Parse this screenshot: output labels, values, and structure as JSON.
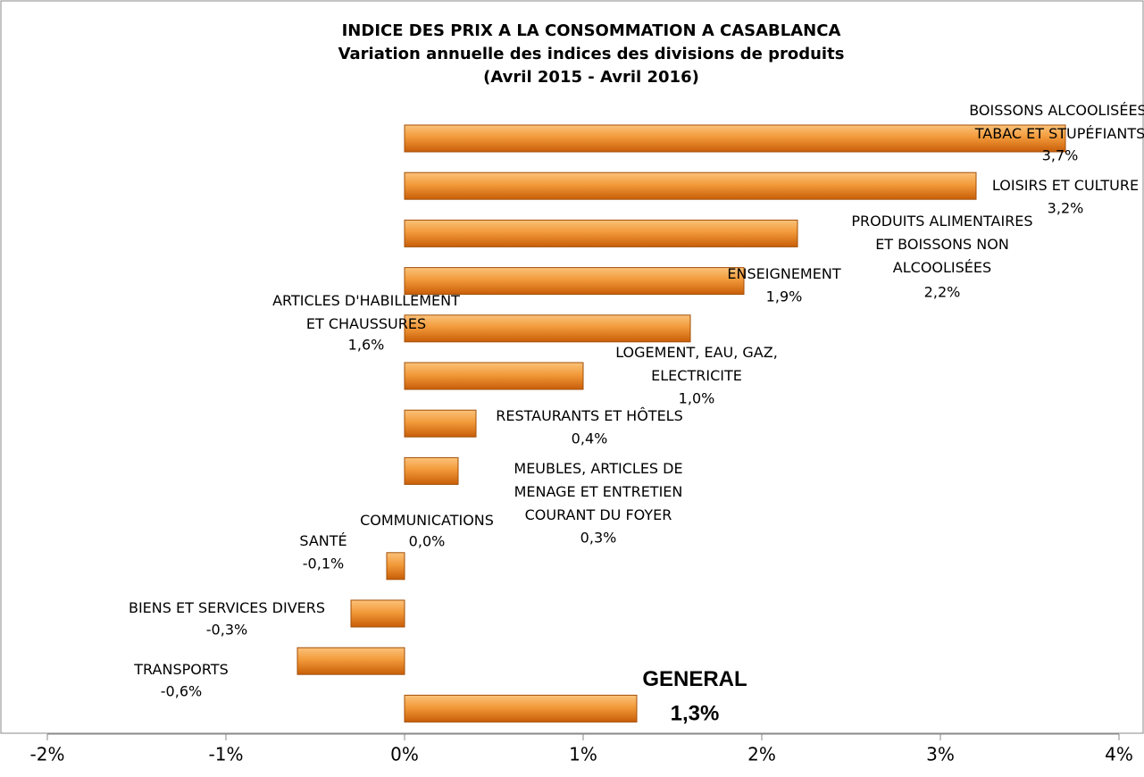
{
  "chart_data": {
    "type": "bar",
    "orientation": "horizontal",
    "title": "INDICE DES PRIX A LA CONSOMMATION A CASABLANCA",
    "subtitle": [
      "Variation annuelle des indices des divisions de produits",
      "(Avril 2015 - Avril 2016)"
    ],
    "categories": [
      "BOISSONS ALCOOLISÉES,\nTABAC ET STUPÉFIANTS",
      "LOISIRS ET CULTURE",
      "PRODUITS ALIMENTAIRES\nET BOISSONS NON\nALCOOLISÉES",
      "ENSEIGNEMENT",
      "ARTICLES D'HABILLEMENT\nET CHAUSSURES",
      "LOGEMENT, EAU, GAZ,\nELECTRICITE",
      "RESTAURANTS ET HÔTELS",
      "MEUBLES, ARTICLES DE\nMENAGE ET ENTRETIEN\nCOURANT DU FOYER",
      "COMMUNICATIONS",
      "SANTÉ",
      "BIENS ET SERVICES DIVERS",
      "TRANSPORTS",
      "GENERAL"
    ],
    "values": [
      3.7,
      3.2,
      2.2,
      1.9,
      1.6,
      1.0,
      0.4,
      0.3,
      0.0,
      -0.1,
      -0.3,
      -0.6,
      1.3
    ],
    "value_labels": [
      "3,7%",
      "3,2%",
      "2,2%",
      "1,9%",
      "1,6%",
      "1,0%",
      "0,4%",
      "0,3%",
      "0,0%",
      "-0,1%",
      "-0,3%",
      "-0,6%",
      "1,3%"
    ],
    "color": "#e8821e",
    "xlim": [
      -2,
      4
    ],
    "xticks": [
      {
        "value": -2,
        "label": "-2%"
      },
      {
        "value": -1,
        "label": "-1%"
      },
      {
        "value": 0,
        "label": "0%"
      },
      {
        "value": 1,
        "label": "1%"
      },
      {
        "value": 2,
        "label": "2%"
      },
      {
        "value": 3,
        "label": "3%"
      },
      {
        "value": 4,
        "label": "4%"
      }
    ],
    "grid": false
  }
}
